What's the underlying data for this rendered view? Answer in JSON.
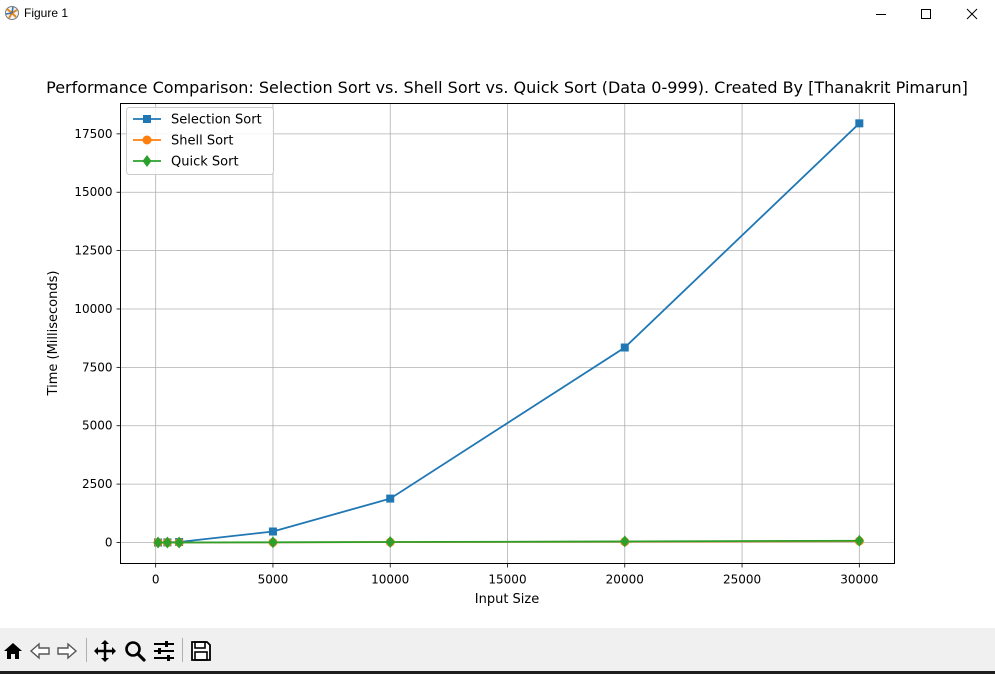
{
  "window": {
    "title": "Figure 1",
    "minimize_icon": "minimize-icon",
    "maximize_icon": "maximize-icon",
    "close_icon": "close-icon"
  },
  "toolbar": {
    "buttons": [
      {
        "icon": "home-icon"
      },
      {
        "icon": "back-arrow-icon"
      },
      {
        "icon": "forward-arrow-icon"
      },
      {
        "icon": "pan-icon"
      },
      {
        "icon": "zoom-icon"
      },
      {
        "icon": "configure-subplots-icon"
      },
      {
        "icon": "save-icon"
      }
    ]
  },
  "colors": {
    "selection": "#1f77b4",
    "shell": "#ff7f0e",
    "quick": "#2ca02c",
    "grid": "#b0b0b0"
  },
  "chart_data": {
    "type": "line",
    "title": "Performance Comparison: Selection Sort vs. Shell Sort vs. Quick Sort (Data 0-999). Created By [Thanakrit Pimarun]",
    "xlabel": "Input Size",
    "ylabel": "Time (Milliseconds)",
    "xlim": [
      -1500,
      31500
    ],
    "ylim": [
      -900,
      18800
    ],
    "xticks": [
      0,
      5000,
      10000,
      15000,
      20000,
      25000,
      30000
    ],
    "yticks": [
      0,
      2500,
      5000,
      7500,
      10000,
      12500,
      15000,
      17500
    ],
    "grid": true,
    "legend_position": "upper-left",
    "x": [
      100,
      500,
      1000,
      5000,
      10000,
      20000,
      30000
    ],
    "series": [
      {
        "name": "Selection Sort",
        "marker": "square",
        "color": "#1f77b4",
        "values": [
          0,
          5,
          20,
          470,
          1880,
          8350,
          17950
        ]
      },
      {
        "name": "Shell Sort",
        "marker": "circle",
        "color": "#ff7f0e",
        "values": [
          0,
          0,
          0,
          5,
          15,
          35,
          60
        ]
      },
      {
        "name": "Quick Sort",
        "marker": "diamond",
        "color": "#2ca02c",
        "values": [
          0,
          0,
          0,
          8,
          20,
          45,
          75
        ]
      }
    ]
  }
}
